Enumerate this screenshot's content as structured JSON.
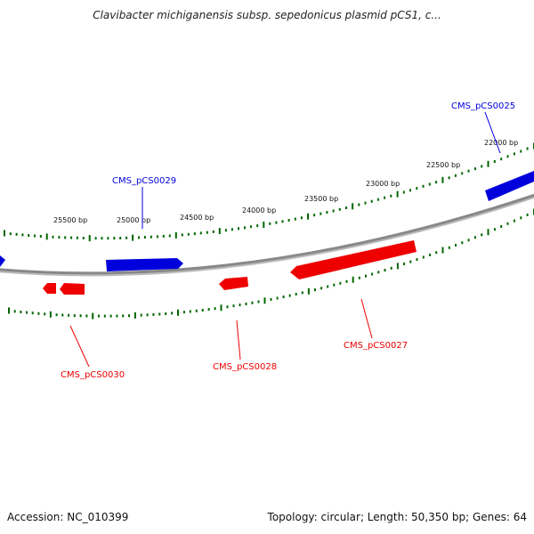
{
  "title": "Clavibacter michiganensis subsp. sepedonicus plasmid pCS1, c...",
  "footer": {
    "accession": "Accession: NC_010399",
    "summary": "Topology: circular; Length: 50,350 bp; Genes: 64"
  },
  "colors": {
    "forward": "#0000dd",
    "reverse": "#ee0000",
    "tick": "#006600",
    "backbone": "#888888"
  },
  "tick_labels": [
    "25500 bp",
    "25000 bp",
    "24500 bp",
    "24000 bp",
    "23500 bp",
    "23000 bp",
    "22500 bp",
    "22000 bp"
  ],
  "genes": [
    {
      "name": "CMS_pCS0025",
      "strand": "forward"
    },
    {
      "name": "CMS_pCS0027",
      "strand": "reverse"
    },
    {
      "name": "CMS_pCS0028",
      "strand": "reverse"
    },
    {
      "name": "CMS_pCS0029",
      "strand": "forward"
    },
    {
      "name": "CMS_pCS0030",
      "strand": "reverse"
    }
  ]
}
